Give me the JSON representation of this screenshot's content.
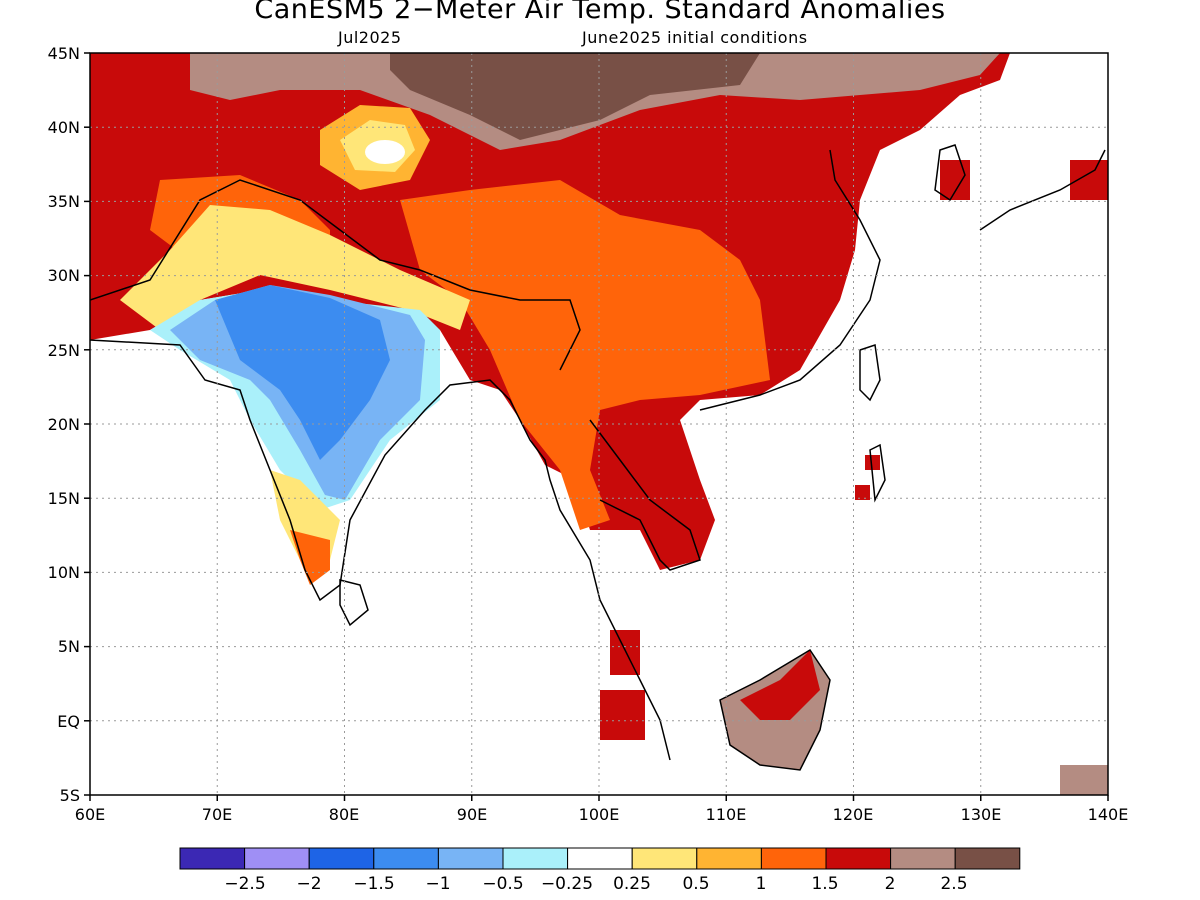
{
  "title": "CanESM5 2−Meter Air Temp. Standard Anomalies",
  "subtitle_left": "Jul2025",
  "subtitle_right": "June2025 initial conditions",
  "map": {
    "lon_range": [
      60,
      140
    ],
    "lat_range": [
      -5,
      45
    ],
    "lat_labels": [
      "45N",
      "40N",
      "35N",
      "30N",
      "25N",
      "20N",
      "15N",
      "10N",
      "5N",
      "EQ",
      "5S"
    ],
    "lon_labels": [
      "60E",
      "70E",
      "80E",
      "90E",
      "100E",
      "110E",
      "120E",
      "130E",
      "140E"
    ],
    "gridlines": "dotted"
  },
  "colorbar": {
    "colors": [
      "#3b28b4",
      "#9f8ff5",
      "#1e64e6",
      "#3c8cf0",
      "#78b4f5",
      "#aaf0fa",
      "#ffffff",
      "#ffe678",
      "#ffb432",
      "#ff640a",
      "#c80a0a",
      "#b48c82",
      "#785046"
    ],
    "tick_labels": [
      "−2.5",
      "−2",
      "−1.5",
      "−1",
      "−0.5",
      "−0.25",
      "0.25",
      "0.5",
      "1",
      "1.5",
      "2",
      "2.5"
    ]
  }
}
